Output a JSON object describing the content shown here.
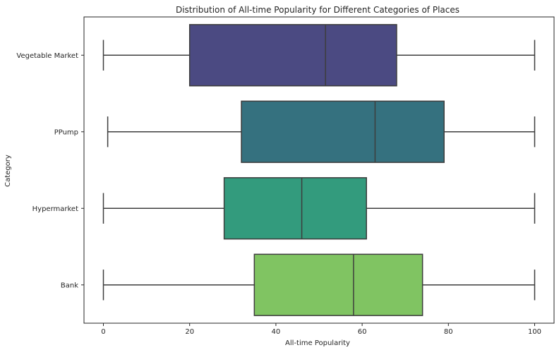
{
  "chart_data": {
    "type": "boxplot",
    "orientation": "horizontal",
    "title": "Distribution of All-time Popularity for Different Categories of Places",
    "xlabel": "All-time Popularity",
    "ylabel": "Category",
    "xlim": [
      -4.5,
      104.5
    ],
    "xticks": [
      0,
      20,
      40,
      60,
      80,
      100
    ],
    "grid": false,
    "categories": [
      "Vegetable Market",
      "PPump",
      "Hypermarket",
      "Bank"
    ],
    "boxes": [
      {
        "category": "Vegetable Market",
        "whisker_low": 0,
        "q1": 20,
        "median": 51.5,
        "q3": 68,
        "whisker_high": 100,
        "color": "#4b4a82"
      },
      {
        "category": "PPump",
        "whisker_low": 1,
        "q1": 32,
        "median": 63,
        "q3": 79,
        "whisker_high": 100,
        "color": "#35717f"
      },
      {
        "category": "Hypermarket",
        "whisker_low": 0,
        "q1": 28,
        "median": 46,
        "q3": 61,
        "whisker_high": 100,
        "color": "#339b7d"
      },
      {
        "category": "Bank",
        "whisker_low": 0,
        "q1": 35,
        "median": 58,
        "q3": 74,
        "whisker_high": 100,
        "color": "#80c462"
      }
    ],
    "line_color": "#3d3d3d",
    "axis_color": "#262626"
  }
}
